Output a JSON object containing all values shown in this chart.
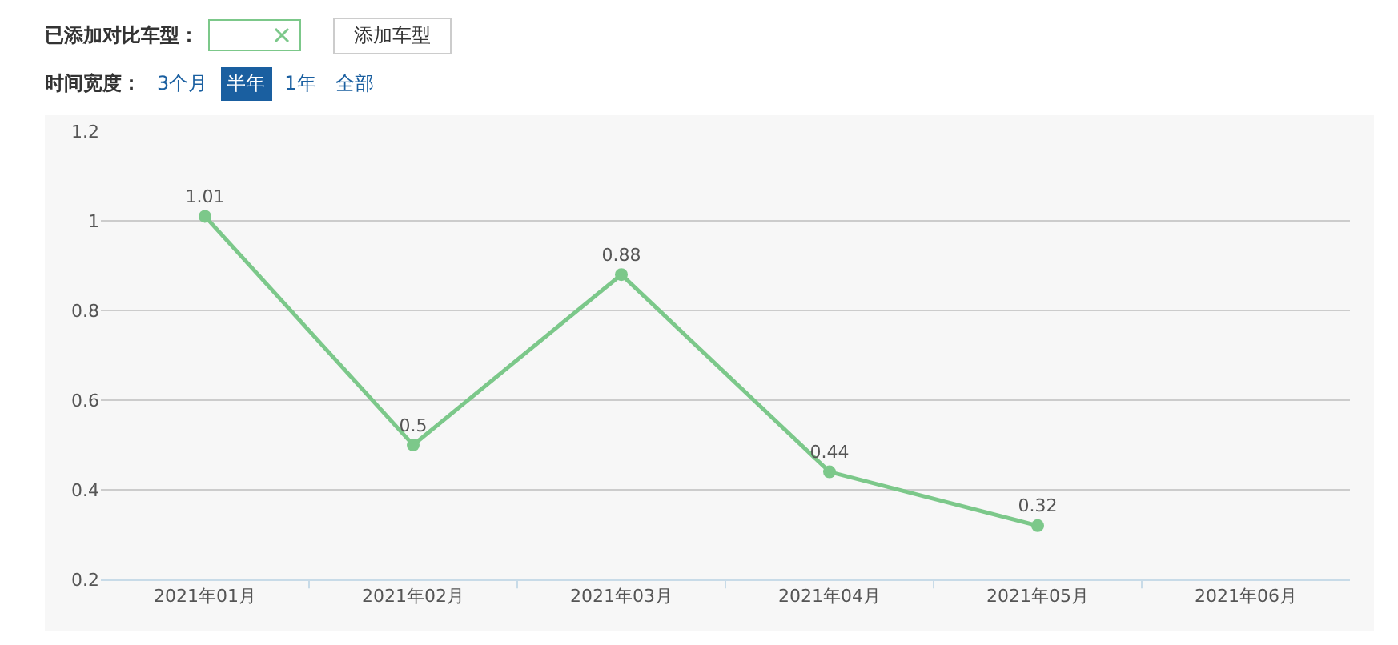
{
  "chart_data": {
    "type": "line",
    "annotations": [
      "已添加对比车型：",
      "添加车型",
      "时间宽度：",
      "3个月",
      "半年",
      "1年",
      "全部"
    ],
    "categories": [
      "2021年01月",
      "2021年02月",
      "2021年03月",
      "2021年04月",
      "2021年05月",
      "2021年06月"
    ],
    "values": [
      1.01,
      0.5,
      0.88,
      0.44,
      0.32,
      null
    ],
    "color": "#7cc88a",
    "ylim": [
      0.2,
      1.2
    ],
    "yticks": [
      0.2,
      0.4,
      0.6,
      0.8,
      1,
      1.2
    ],
    "grid": "y",
    "marker": "circle",
    "line_style": "solid",
    "data_labels": true
  }
}
